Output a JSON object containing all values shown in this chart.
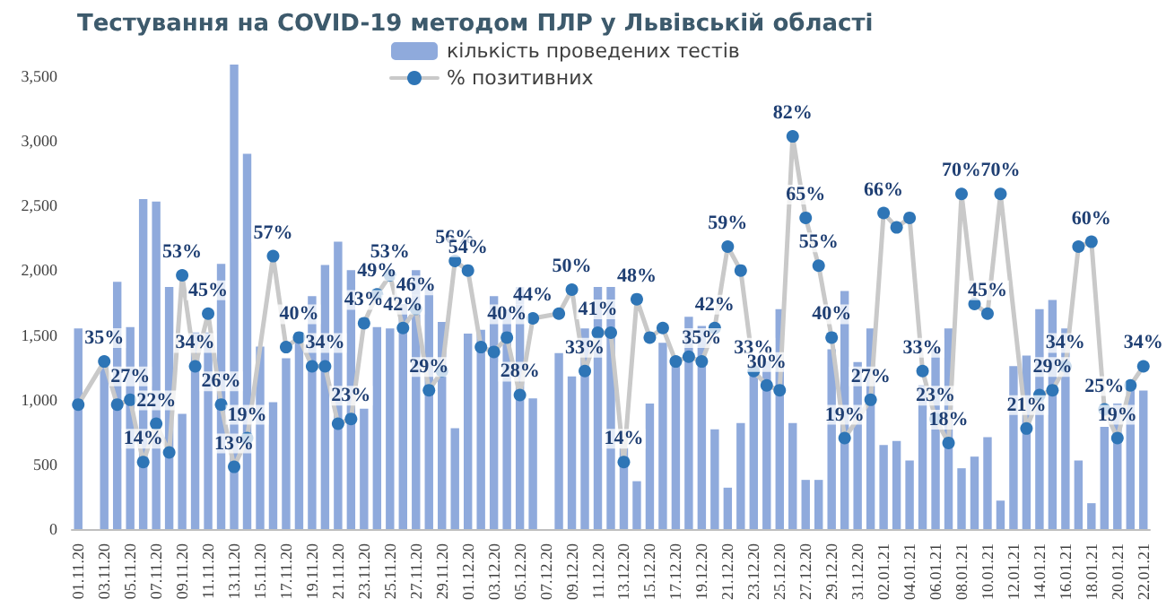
{
  "chart_data": {
    "type": "bar",
    "title": "Тестування на COVID-19 методом ПЛР у Львівській області",
    "categories": [
      "01.11.20",
      null,
      "03.11.20",
      null,
      "05.11.20",
      null,
      "07.11.20",
      null,
      "09.11.20",
      null,
      "11.11.20",
      null,
      "13.11.20",
      null,
      "15.11.20",
      null,
      "17.11.20",
      null,
      "19.11.20",
      null,
      "21.11.20",
      null,
      "23.11.20",
      null,
      "25.11.20",
      null,
      "27.11.20",
      null,
      "29.11.20",
      null,
      "01.12.20",
      null,
      "03.12.20",
      null,
      "05.12.20",
      null,
      "07.12.20",
      null,
      "09.12.20",
      null,
      "11.12.20",
      null,
      "13.12.20",
      null,
      "15.12.20",
      null,
      "17.12.20",
      null,
      "19.12.20",
      null,
      "21.12.20",
      null,
      "23.12.20",
      null,
      "25.12.20",
      null,
      "27.12.20",
      null,
      "29.12.20",
      null,
      "31.12.20",
      null,
      "02.01.21",
      null,
      "04.01.21",
      null,
      "06.01.21",
      null,
      "08.01.21",
      null,
      "10.01.21",
      null,
      "12.01.21",
      null,
      "14.01.21",
      null,
      "16.01.21",
      null,
      "18.01.21",
      null,
      "20.01.21",
      null,
      "22.01.21"
    ],
    "series": [
      {
        "name": "кількість проведених тестів",
        "color": "#8faadc",
        "values": [
          1550,
          null,
          1250,
          1910,
          1560,
          2550,
          2530,
          1870,
          890,
          1520,
          1520,
          2050,
          3590,
          2900,
          1410,
          980,
          1320,
          1520,
          1800,
          2040,
          2220,
          2000,
          930,
          1560,
          1550,
          1740,
          2000,
          1880,
          1600,
          780,
          1510,
          1540,
          1800,
          1700,
          1870,
          1010,
          null,
          1360,
          1180,
          1550,
          1870,
          1870,
          630,
          370,
          970,
          1440,
          1300,
          1640,
          1570,
          770,
          320,
          820,
          1200,
          1300,
          1700,
          820,
          380,
          380,
          1390,
          1840,
          1290,
          1550,
          650,
          680,
          530,
          1110,
          1390,
          1550,
          470,
          560,
          710,
          220,
          1260,
          1340,
          1700,
          1770,
          1550,
          530,
          200,
          790,
          970,
          1120,
          1070
        ]
      },
      {
        "name": "% позитивних",
        "type": "line",
        "axis": "y2",
        "color": "#2e75b6",
        "marker": "circle",
        "values": [
          26,
          null,
          35,
          26,
          27,
          14,
          22,
          16,
          53,
          34,
          45,
          26,
          13,
          19,
          null,
          57,
          38,
          40,
          34,
          34,
          22,
          23,
          43,
          49,
          53,
          42,
          46,
          29,
          33,
          56,
          54,
          38,
          37,
          40,
          28,
          44,
          null,
          45,
          50,
          33,
          41,
          41,
          14,
          48,
          40,
          42,
          35,
          36,
          35,
          42,
          59,
          54,
          33,
          30,
          29,
          82,
          65,
          55,
          40,
          19,
          null,
          27,
          66,
          63,
          65,
          33,
          23,
          18,
          70,
          47,
          45,
          70,
          null,
          21,
          28,
          29,
          34,
          59,
          60,
          25,
          19,
          30,
          34
        ],
        "value_labels": [
          null,
          null,
          "35%",
          null,
          "27%",
          "14%",
          "22%",
          null,
          "53%",
          "34%",
          "45%",
          "26%",
          "13%",
          "19%",
          null,
          "57%",
          null,
          "40%",
          null,
          "34%",
          null,
          "23%",
          "43%",
          "49%",
          "53%",
          "42%",
          "46%",
          "29%",
          null,
          "56%",
          "54%",
          null,
          null,
          "40%",
          "28%",
          "44%",
          null,
          null,
          "50%",
          "33%",
          "41%",
          null,
          "14%",
          "48%",
          null,
          null,
          null,
          null,
          "35%",
          "42%",
          "59%",
          null,
          "33%",
          "30%",
          null,
          "82%",
          "65%",
          "55%",
          "40%",
          "19%",
          null,
          "27%",
          "66%",
          null,
          null,
          "33%",
          "23%",
          "18%",
          "70%",
          null,
          "45%",
          "70%",
          null,
          "21%",
          null,
          "29%",
          "34%",
          null,
          "60%",
          "25%",
          "19%",
          null,
          "34%"
        ]
      }
    ],
    "ylim": [
      0,
      3700
    ],
    "yticks": [
      0,
      {
        "value": 500,
        "label": "500"
      },
      {
        "value": 1000,
        "label": "1,000"
      },
      {
        "value": 1500,
        "label": "1,500"
      },
      {
        "value": 2000,
        "label": "2,000"
      },
      {
        "value": 2500,
        "label": "2,500"
      },
      {
        "value": 3000,
        "label": "3,000"
      },
      {
        "value": 3500,
        "label": "3,500"
      }
    ],
    "grid": false,
    "legend": "top"
  }
}
